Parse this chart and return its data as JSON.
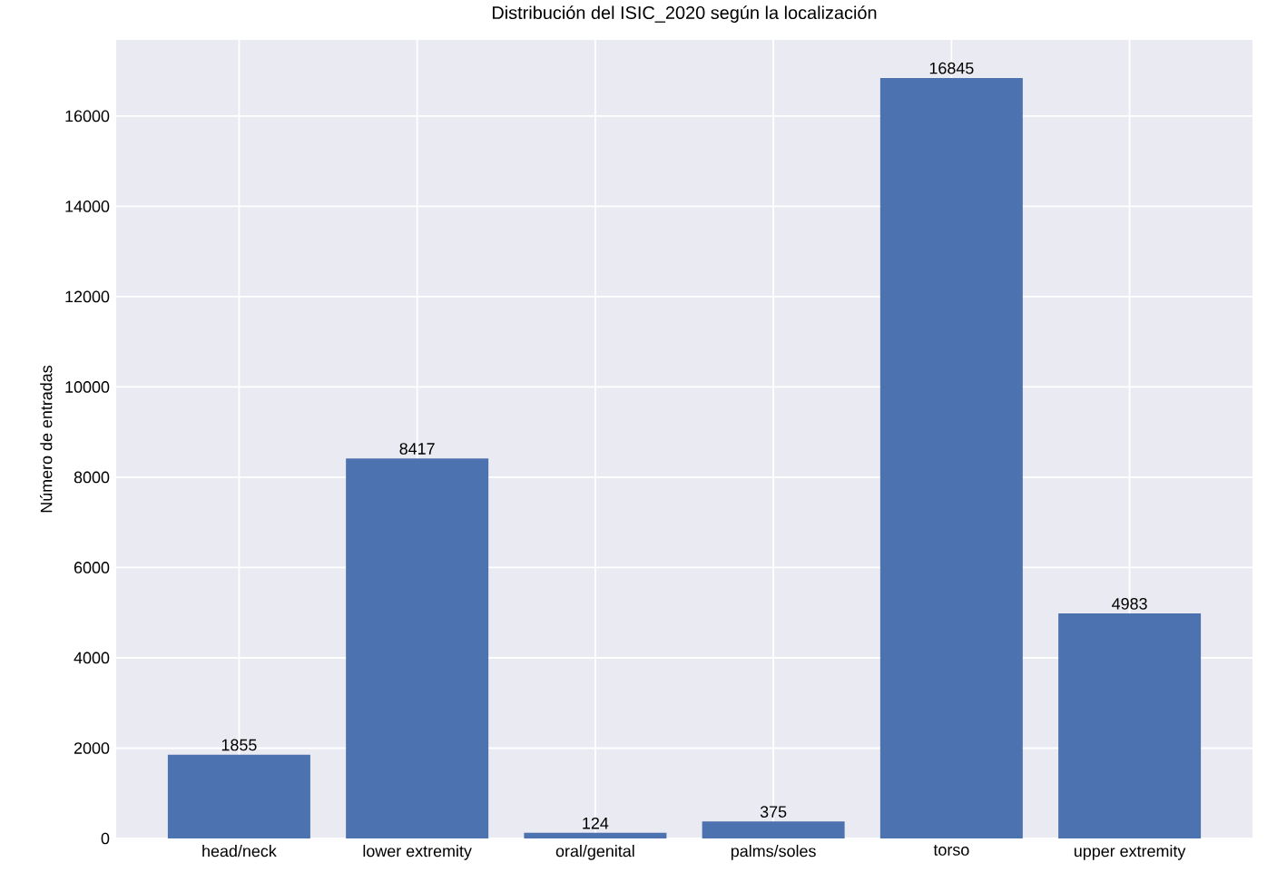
{
  "chart_data": {
    "type": "bar",
    "title": "Distribución del ISIC_2020 según la localización",
    "ylabel": "Número de entradas",
    "categories": [
      "head/neck",
      "lower extremity",
      "oral/genital",
      "palms/soles",
      "torso",
      "upper extremity"
    ],
    "values": [
      1855,
      8417,
      124,
      375,
      16845,
      4983
    ],
    "color": "#4c72b0",
    "ylim": [
      0,
      17687
    ],
    "yticks": [
      0,
      2000,
      4000,
      6000,
      8000,
      10000,
      12000,
      14000,
      16000
    ],
    "grid": true,
    "data_labels": true
  }
}
